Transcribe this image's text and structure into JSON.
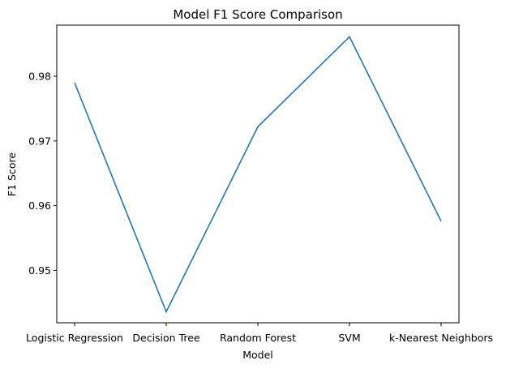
{
  "chart_data": {
    "type": "line",
    "title": "Model F1 Score Comparison",
    "xlabel": "Model",
    "ylabel": "F1 Score",
    "categories": [
      "Logistic Regression",
      "Decision Tree",
      "Random Forest",
      "SVM",
      "k-Nearest Neighbors"
    ],
    "values": [
      0.979,
      0.9436,
      0.9722,
      0.9861,
      0.9576
    ],
    "ylim": [
      0.9419,
      0.9879
    ],
    "yticks": [
      "0.95",
      "0.96",
      "0.97",
      "0.98"
    ],
    "yticks_values": [
      0.95,
      0.96,
      0.97,
      0.98
    ],
    "grid": false,
    "line_color": "#1f77b4"
  }
}
